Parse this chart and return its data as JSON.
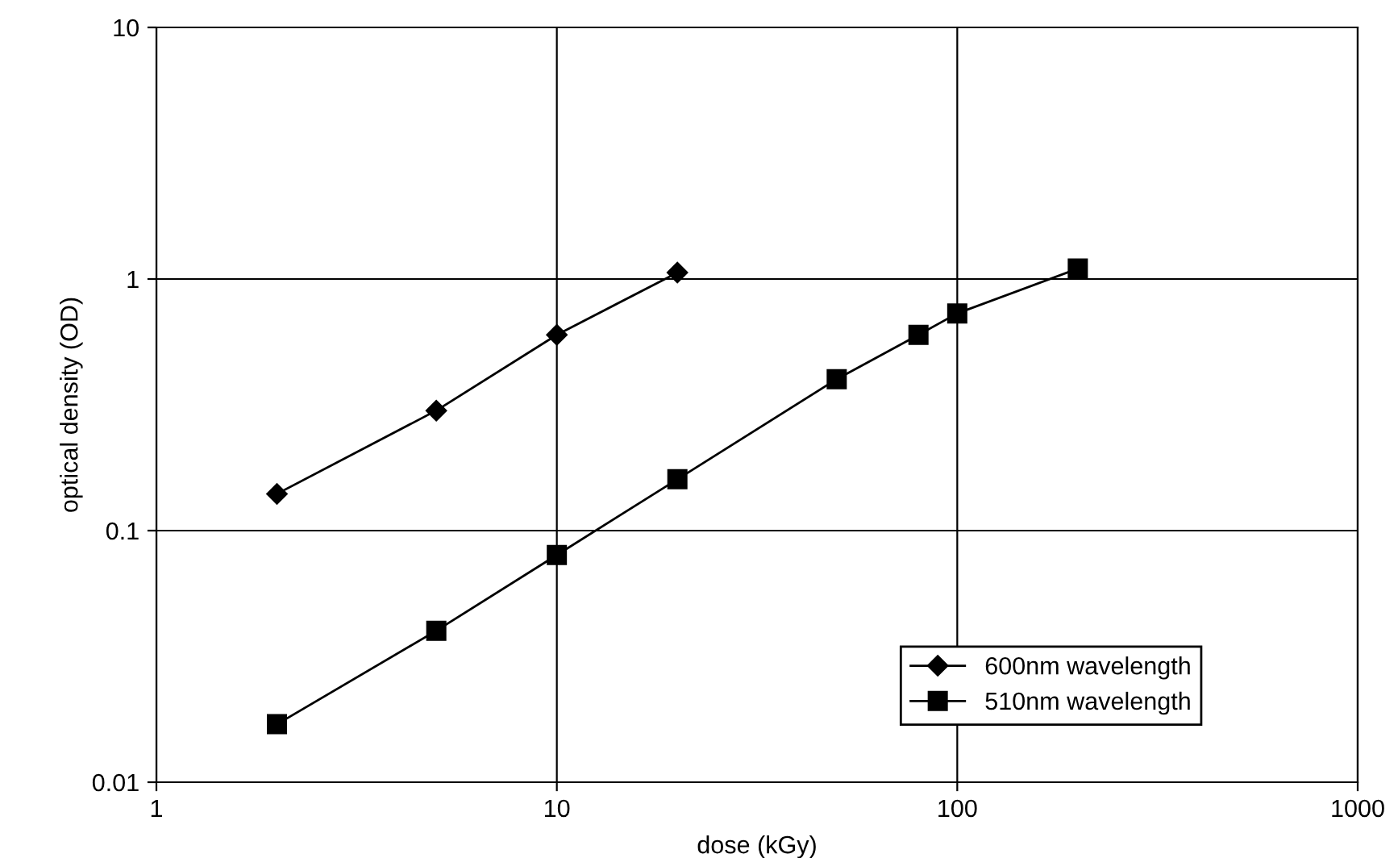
{
  "chart_data": {
    "type": "line",
    "xlabel": "dose (kGy)",
    "ylabel": "optical density (OD)",
    "log": "xy",
    "xlim": [
      1,
      1000
    ],
    "xticks": [
      1,
      10,
      100,
      1000
    ],
    "ylim": [
      0.01,
      10
    ],
    "yticks": [
      0.01,
      0.1,
      1,
      10
    ],
    "grid": true,
    "legend": "bottom right",
    "line_style": "solid",
    "series": [
      {
        "name": "600nm wavelength",
        "color": "#000000",
        "marker": "diamond",
        "x": [
          2,
          5,
          10,
          20
        ],
        "values": [
          0.14,
          0.3,
          0.6,
          1.06
        ]
      },
      {
        "name": "510nm wavelength",
        "color": "#000000",
        "marker": "square",
        "x": [
          2,
          5,
          10,
          20,
          50,
          80,
          100,
          200
        ],
        "values": [
          0.017,
          0.04,
          0.08,
          0.16,
          0.4,
          0.6,
          0.73,
          1.1
        ]
      }
    ]
  }
}
